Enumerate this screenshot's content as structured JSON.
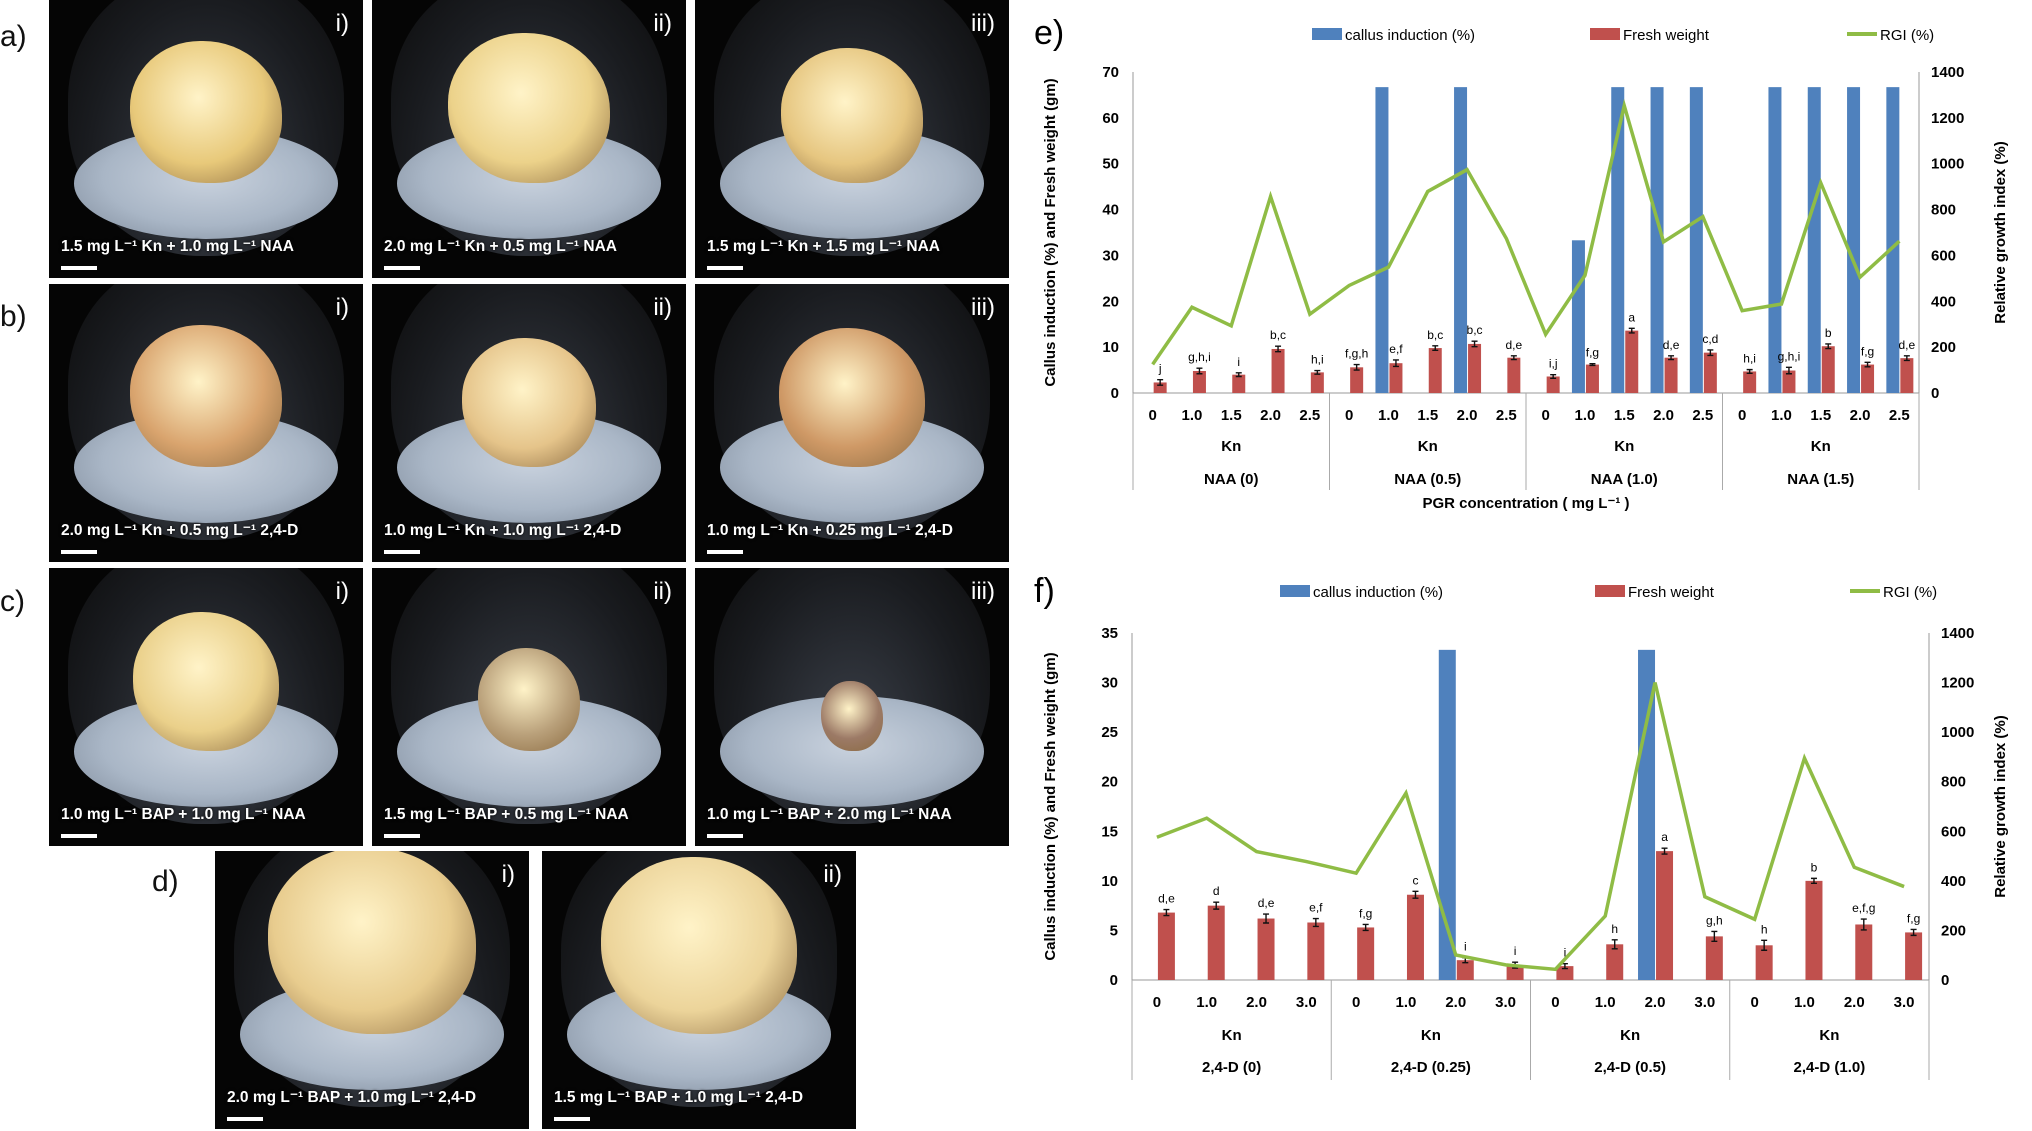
{
  "panels": {
    "a": {
      "label": "a)",
      "photos": [
        {
          "numeral": "i)",
          "caption": "1.5 mg L⁻¹ Kn + 1.0 mg L⁻¹ NAA"
        },
        {
          "numeral": "ii)",
          "caption": "2.0 mg L⁻¹ Kn + 0.5 mg L⁻¹ NAA"
        },
        {
          "numeral": "iii)",
          "caption": "1.5 mg L⁻¹ Kn + 1.5 mg L⁻¹ NAA"
        }
      ]
    },
    "b": {
      "label": "b)",
      "photos": [
        {
          "numeral": "i)",
          "caption": "2.0 mg L⁻¹ Kn + 0.5 mg L⁻¹ 2,4-D"
        },
        {
          "numeral": "ii)",
          "caption": "1.0 mg L⁻¹ Kn + 1.0 mg L⁻¹ 2,4-D"
        },
        {
          "numeral": "iii)",
          "caption": "1.0 mg L⁻¹ Kn + 0.25 mg L⁻¹ 2,4-D"
        }
      ]
    },
    "c": {
      "label": "c)",
      "photos": [
        {
          "numeral": "i)",
          "caption": "1.0 mg L⁻¹ BAP + 1.0 mg L⁻¹ NAA"
        },
        {
          "numeral": "ii)",
          "caption": "1.5 mg L⁻¹ BAP + 0.5 mg L⁻¹ NAA"
        },
        {
          "numeral": "iii)",
          "caption": "1.0 mg L⁻¹ BAP + 2.0 mg L⁻¹ NAA"
        }
      ]
    },
    "d": {
      "label": "d)",
      "photos": [
        {
          "numeral": "i)",
          "caption": "2.0 mg L⁻¹ BAP + 1.0 mg L⁻¹ 2,4-D"
        },
        {
          "numeral": "ii)",
          "caption": "1.5 mg L⁻¹ BAP + 1.0 mg L⁻¹ 2,4-D"
        }
      ]
    }
  },
  "colors": {
    "callus": "#4f81bd",
    "fresh": "#c0504d",
    "rgi": "#8fbc45"
  },
  "chart_data": [
    {
      "panel_label": "e)",
      "type": "bar+line",
      "legend": [
        "callus induction (%)",
        "Fresh weight",
        "RGI (%)"
      ],
      "legend_position": "top",
      "ylabel": "Callus induction (%) and Fresh weight (gm)",
      "y2label": "Relative growth index (%)",
      "xlabel": "PGR concentration ( mg L⁻¹ )",
      "ylim": [
        0,
        70
      ],
      "yticks": [
        0,
        10,
        20,
        30,
        40,
        50,
        60,
        70
      ],
      "y2lim": [
        0,
        1400
      ],
      "y2ticks": [
        0,
        200,
        400,
        600,
        800,
        1000,
        1200,
        1400
      ],
      "sublabel": "Kn",
      "groups": [
        "NAA (0)",
        "NAA (0.5)",
        "NAA (1.0)",
        "NAA (1.5)"
      ],
      "categories": [
        "0",
        "1.0",
        "1.5",
        "2.0",
        "2.5",
        "0",
        "1.0",
        "1.5",
        "2.0",
        "2.5",
        "0",
        "1.0",
        "1.5",
        "2.0",
        "2.5",
        "0",
        "1.0",
        "1.5",
        "2.0",
        "2.5"
      ],
      "series": [
        {
          "name": "callus induction (%)",
          "kind": "bar",
          "axis": "left",
          "values": [
            0,
            0,
            0,
            0,
            0,
            0,
            66.7,
            0,
            66.7,
            0,
            0,
            33.3,
            66.7,
            66.7,
            66.7,
            0,
            66.7,
            66.7,
            66.7,
            66.7
          ]
        },
        {
          "name": "Fresh weight",
          "kind": "bar",
          "axis": "left",
          "values": [
            2.3,
            4.8,
            4.0,
            9.6,
            4.5,
            5.6,
            6.5,
            9.8,
            10.7,
            7.7,
            3.6,
            6.2,
            13.6,
            7.7,
            8.8,
            4.7,
            4.9,
            10.2,
            6.2,
            7.6
          ],
          "errors": [
            0.6,
            0.6,
            0.4,
            0.6,
            0.4,
            0.6,
            0.7,
            0.5,
            0.6,
            0.4,
            0.4,
            0.2,
            0.5,
            0.4,
            0.6,
            0.4,
            0.7,
            0.5,
            0.5,
            0.5
          ],
          "labels": [
            "j",
            "g,h,i",
            "i",
            "b,c",
            "h,i",
            "f,g,h",
            "e,f",
            "b,c",
            "b,c",
            "d,e",
            "i,j",
            "f,g",
            "a",
            "d,e",
            "c,d",
            "h,i",
            "g,h,i",
            "b",
            "f,g",
            "d,e"
          ]
        },
        {
          "name": "RGI (%)",
          "kind": "line",
          "axis": "right",
          "values": [
            125,
            374,
            293,
            857,
            344,
            469,
            549,
            879,
            974,
            674,
            256,
            513,
            1253,
            659,
            769,
            359,
            388,
            916,
            505,
            662
          ]
        }
      ]
    },
    {
      "panel_label": "f)",
      "type": "bar+line",
      "legend": [
        "callus induction (%)",
        "Fresh weight",
        "RGI (%)"
      ],
      "legend_position": "top",
      "ylabel": "Callus induction (%) and Fresh weight (gm)",
      "y2label": "Relative growth index (%)",
      "ylim": [
        0,
        35
      ],
      "yticks": [
        0,
        5,
        10,
        15,
        20,
        25,
        30,
        35
      ],
      "y2lim": [
        0,
        1400
      ],
      "y2ticks": [
        0,
        200,
        400,
        600,
        800,
        1000,
        1200,
        1400
      ],
      "sublabel": "Kn",
      "groups": [
        "2,4-D (0)",
        "2,4-D (0.25)",
        "2,4-D (0.5)",
        "2,4-D (1.0)"
      ],
      "categories": [
        "0",
        "1.0",
        "2.0",
        "3.0",
        "0",
        "1.0",
        "2.0",
        "3.0",
        "0",
        "1.0",
        "2.0",
        "3.0",
        "0",
        "1.0",
        "2.0",
        "3.0"
      ],
      "series": [
        {
          "name": "callus induction (%)",
          "kind": "bar",
          "axis": "left",
          "values": [
            0,
            0,
            0,
            0,
            0,
            0,
            33.3,
            0,
            0,
            0,
            33.3,
            0,
            0,
            0,
            0,
            0
          ]
        },
        {
          "name": "Fresh weight",
          "kind": "bar",
          "axis": "left",
          "values": [
            6.8,
            7.5,
            6.2,
            5.8,
            5.3,
            8.6,
            2.0,
            1.5,
            1.4,
            3.6,
            13.0,
            4.4,
            3.5,
            10.0,
            5.6,
            4.8
          ],
          "errors": [
            0.3,
            0.35,
            0.45,
            0.4,
            0.3,
            0.35,
            0.25,
            0.3,
            0.25,
            0.45,
            0.3,
            0.5,
            0.5,
            0.25,
            0.55,
            0.3
          ],
          "labels": [
            "d,e",
            "d",
            "d,e",
            "e,f",
            "f,g",
            "c",
            "i",
            "i",
            "i",
            "h",
            "a",
            "g,h",
            "h",
            "b",
            "e,f,g",
            "f,g"
          ]
        },
        {
          "name": "RGI (%)",
          "kind": "line",
          "axis": "right",
          "values": [
            576,
            653,
            518,
            478,
            431,
            754,
            101,
            61,
            43,
            258,
            1200,
            336,
            245,
            895,
            455,
            377
          ]
        }
      ]
    }
  ]
}
